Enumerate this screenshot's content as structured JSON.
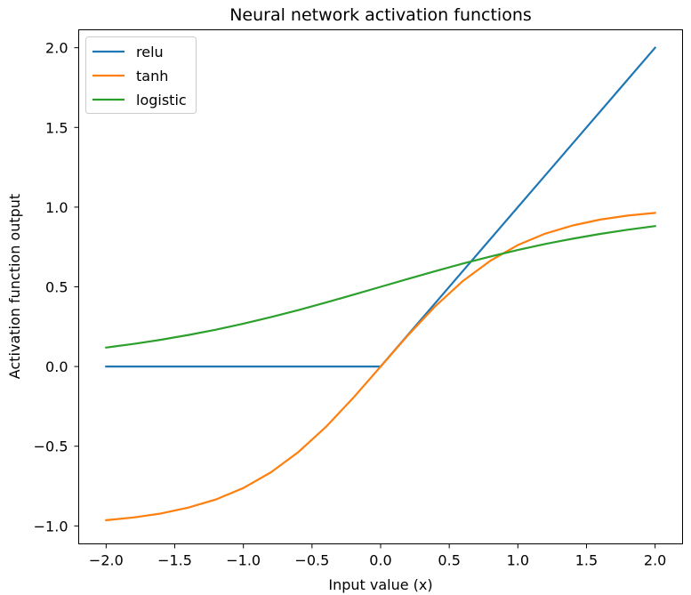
{
  "chart_data": {
    "type": "line",
    "title": "Neural network activation functions",
    "xlabel": "Input value (x)",
    "ylabel": "Activation function output",
    "xlim": [
      -2.2,
      2.2
    ],
    "ylim": [
      -1.1125,
      2.1125
    ],
    "xticks": [
      -2.0,
      -1.5,
      -1.0,
      -0.5,
      0.0,
      0.5,
      1.0,
      1.5,
      2.0
    ],
    "xtick_labels": [
      "−2.0",
      "−1.5",
      "−1.0",
      "−0.5",
      "0.0",
      "0.5",
      "1.0",
      "1.5",
      "2.0"
    ],
    "yticks": [
      -1.0,
      -0.5,
      0.0,
      0.5,
      1.0,
      1.5,
      2.0
    ],
    "ytick_labels": [
      "−1.0",
      "−0.5",
      "0.0",
      "0.5",
      "1.0",
      "1.5",
      "2.0"
    ],
    "grid": false,
    "legend_position": "top-left",
    "x": [
      -2.0,
      -1.8,
      -1.6,
      -1.4,
      -1.2,
      -1.0,
      -0.8,
      -0.6,
      -0.4,
      -0.2,
      0.0,
      0.2,
      0.4,
      0.6,
      0.8,
      1.0,
      1.2,
      1.4,
      1.6,
      1.8,
      2.0
    ],
    "series": [
      {
        "name": "relu",
        "color": "#1f77b4",
        "values": [
          0,
          0,
          0,
          0,
          0,
          0,
          0,
          0,
          0,
          0,
          0,
          0.2,
          0.4,
          0.6,
          0.8,
          1.0,
          1.2,
          1.4,
          1.6,
          1.8,
          2.0
        ]
      },
      {
        "name": "tanh",
        "color": "#ff7f0e",
        "values": [
          -0.964,
          -0.947,
          -0.922,
          -0.885,
          -0.834,
          -0.762,
          -0.664,
          -0.537,
          -0.38,
          -0.197,
          0.0,
          0.197,
          0.38,
          0.537,
          0.664,
          0.762,
          0.834,
          0.885,
          0.922,
          0.947,
          0.964
        ]
      },
      {
        "name": "logistic",
        "color": "#2ca02c",
        "values": [
          0.119,
          0.142,
          0.168,
          0.198,
          0.231,
          0.269,
          0.31,
          0.354,
          0.401,
          0.45,
          0.5,
          0.55,
          0.599,
          0.646,
          0.69,
          0.731,
          0.769,
          0.802,
          0.832,
          0.858,
          0.881
        ]
      }
    ]
  }
}
